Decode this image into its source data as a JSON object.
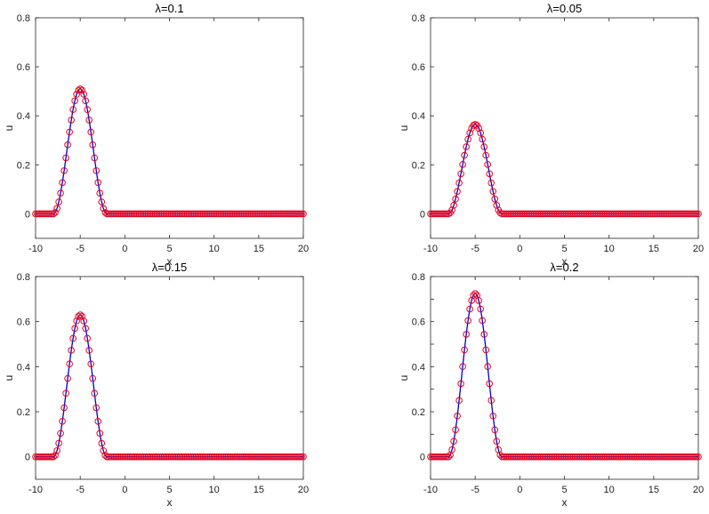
{
  "colors": {
    "curve": "#0000cc",
    "marker": "#e8001c",
    "axes": "#262626",
    "grid": "none"
  },
  "chart_data": [
    {
      "type": "line",
      "title": "λ=0.1",
      "xlabel": "x",
      "ylabel": "u",
      "xlim": [
        -10,
        20
      ],
      "ylim": [
        -0.1,
        0.8
      ],
      "xticks": [
        -10,
        -5,
        0,
        5,
        10,
        15,
        20
      ],
      "yticks": [
        0,
        0.2,
        0.4,
        0.6,
        0.8
      ],
      "ytick_labels": [
        "0",
        "0.2",
        "0.4",
        "0.6",
        "0.8"
      ],
      "peak": 0.51,
      "peak_x": -5,
      "support": [
        -8,
        -2
      ],
      "grid": false,
      "legend": "none",
      "series": [
        {
          "kind": "line",
          "color": "#0000cc"
        },
        {
          "kind": "scatter",
          "marker": "circle-open",
          "color": "#e8001c"
        }
      ]
    },
    {
      "type": "line",
      "title": "λ=0.05",
      "xlabel": "x",
      "ylabel": "u",
      "xlim": [
        -10,
        20
      ],
      "ylim": [
        -0.1,
        0.8
      ],
      "xticks": [
        -10,
        -5,
        0,
        5,
        10,
        15,
        20
      ],
      "yticks": [
        0,
        0.2,
        0.4,
        0.6,
        0.8
      ],
      "ytick_labels": [
        "0",
        "0.2",
        "0.4",
        "0.6",
        "0.8"
      ],
      "peak": 0.365,
      "peak_x": -5,
      "support": [
        -8,
        -2
      ],
      "grid": false,
      "legend": "none",
      "series": [
        {
          "kind": "line",
          "color": "#0000cc"
        },
        {
          "kind": "scatter",
          "marker": "circle-open",
          "color": "#e8001c"
        }
      ]
    },
    {
      "type": "line",
      "title": "λ=0.15",
      "xlabel": "x",
      "ylabel": "u",
      "xlim": [
        -10,
        20
      ],
      "ylim": [
        -0.1,
        0.8
      ],
      "xticks": [
        -10,
        -5,
        0,
        5,
        10,
        15,
        20
      ],
      "yticks": [
        0,
        0.2,
        0.4,
        0.6,
        0.8
      ],
      "ytick_labels": [
        "0",
        "0.2",
        "0.4",
        "0.6",
        "0.8"
      ],
      "peak": 0.63,
      "peak_x": -5,
      "support": [
        -8,
        -2
      ],
      "grid": false,
      "legend": "none",
      "series": [
        {
          "kind": "line",
          "color": "#0000cc"
        },
        {
          "kind": "scatter",
          "marker": "circle-open",
          "color": "#e8001c"
        }
      ]
    },
    {
      "type": "line",
      "title": "λ=0.2",
      "xlabel": "x",
      "ylabel": "u",
      "xlim": [
        -10,
        20
      ],
      "ylim": [
        -0.1,
        0.8
      ],
      "xticks": [
        -10,
        -5,
        0,
        5,
        10,
        15,
        20
      ],
      "yticks": [
        0,
        0.1,
        0.2,
        0.3,
        0.4,
        0.5,
        0.6,
        0.7,
        0.8
      ],
      "ytick_labels": [
        "0",
        "",
        "0.2",
        "",
        "0.4",
        "",
        "0.6",
        "",
        "0.8"
      ],
      "peak": 0.725,
      "peak_x": -5,
      "support": [
        -8,
        -2
      ],
      "grid": false,
      "legend": "none",
      "series": [
        {
          "kind": "line",
          "color": "#0000cc"
        },
        {
          "kind": "scatter",
          "marker": "circle-open",
          "color": "#e8001c"
        }
      ]
    }
  ]
}
